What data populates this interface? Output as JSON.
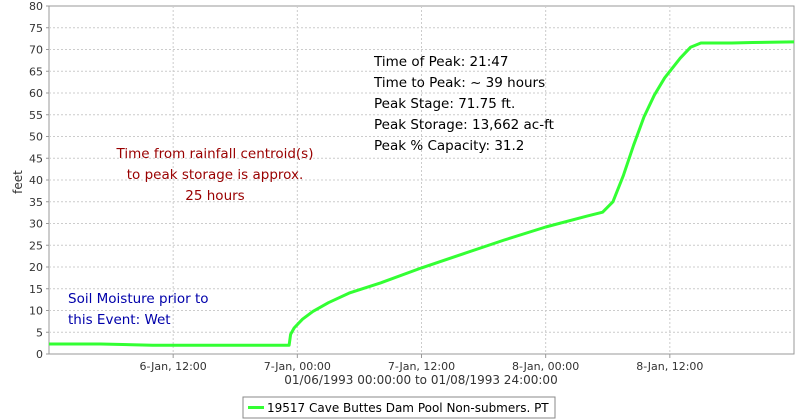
{
  "chart_data": {
    "type": "line",
    "ylabel": "feet",
    "xlabel": "01/06/1993 00:00:00 to 01/08/1993 24:00:00",
    "ylim": [
      0,
      80
    ],
    "yticks": [
      0,
      5,
      10,
      15,
      20,
      25,
      30,
      35,
      40,
      45,
      50,
      55,
      60,
      65,
      70,
      75,
      80
    ],
    "xlim_hours": [
      0,
      72
    ],
    "xticks": [
      {
        "hour": 12,
        "label": "6-Jan, 12:00"
      },
      {
        "hour": 24,
        "label": "7-Jan, 00:00"
      },
      {
        "hour": 36,
        "label": "7-Jan, 12:00"
      },
      {
        "hour": 48,
        "label": "8-Jan, 00:00"
      },
      {
        "hour": 60,
        "label": "8-Jan, 12:00"
      }
    ],
    "grid": true,
    "legend_position": "bottom-center",
    "series": [
      {
        "name": "19517 Cave Buttes Dam Pool Non-submers. PT",
        "color": "#33ff33",
        "points": [
          [
            0,
            2.3
          ],
          [
            5,
            2.3
          ],
          [
            10,
            2.0
          ],
          [
            15,
            2.0
          ],
          [
            20,
            2.0
          ],
          [
            23.2,
            2.0
          ],
          [
            23.35,
            4.5
          ],
          [
            23.7,
            6.0
          ],
          [
            24.5,
            8.0
          ],
          [
            25.5,
            9.8
          ],
          [
            27,
            11.8
          ],
          [
            29,
            14.0
          ],
          [
            32,
            16.3
          ],
          [
            36,
            19.8
          ],
          [
            40,
            23.0
          ],
          [
            44,
            26.2
          ],
          [
            48,
            29.2
          ],
          [
            52,
            31.7
          ],
          [
            53.5,
            32.6
          ],
          [
            54.5,
            35.0
          ],
          [
            55.5,
            41.0
          ],
          [
            56.5,
            48.0
          ],
          [
            57.5,
            54.5
          ],
          [
            58.5,
            59.5
          ],
          [
            59.5,
            63.5
          ],
          [
            61,
            68.0
          ],
          [
            62,
            70.5
          ],
          [
            63,
            71.5
          ],
          [
            66,
            71.5
          ],
          [
            68,
            71.6
          ],
          [
            72,
            71.75
          ]
        ]
      }
    ],
    "annotations": [
      {
        "lines": [
          "Time of Peak: 21:47",
          "Time to Peak: ~ 39 hours",
          "Peak Stage: 71.75 ft.",
          "Peak Storage: 13,662 ac-ft",
          "Peak % Capacity: 31.2"
        ],
        "color": "#000000"
      },
      {
        "lines": [
          "Time from rainfall centroid(s)",
          "to peak storage is approx.",
          "25 hours"
        ],
        "color": "#990000"
      },
      {
        "lines": [
          "Soil Moisture prior to",
          "this Event: Wet"
        ],
        "color": "#0000aa"
      }
    ]
  }
}
